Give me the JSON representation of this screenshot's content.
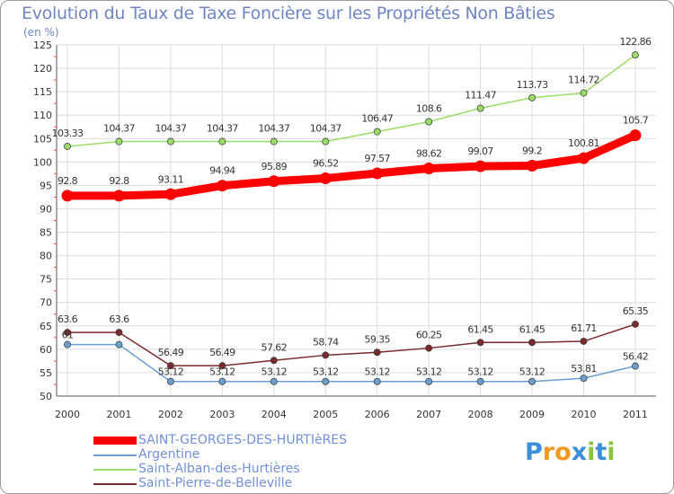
{
  "chart_data": {
    "type": "line",
    "title": "Evolution du Taux de Taxe Foncière sur les Propriétés Non Bâties",
    "ylabel": "(en %)",
    "xlabel": "",
    "x": [
      "2000",
      "2001",
      "2002",
      "2003",
      "2004",
      "2005",
      "2006",
      "2007",
      "2008",
      "2009",
      "2010",
      "2011"
    ],
    "ylim": [
      50,
      125
    ],
    "yticks": [
      "50",
      "55",
      "60",
      "65",
      "70",
      "75",
      "80",
      "85",
      "90",
      "95",
      "100",
      "105",
      "110",
      "115",
      "120",
      "125"
    ],
    "grid": true,
    "series": [
      {
        "name": "SAINT-GEORGES-DES-HURTIèRES",
        "color": "#ff0000",
        "values": [
          92.8,
          92.8,
          93.11,
          94.94,
          95.89,
          96.52,
          97.57,
          98.62,
          99.07,
          99.2,
          100.81,
          105.7
        ],
        "labels": [
          "92.8",
          "92.8",
          "93.11",
          "94.94",
          "95.89",
          "96.52",
          "97.57",
          "98.62",
          "99.07",
          "99.2",
          "100.81",
          "105.7"
        ]
      },
      {
        "name": "Argentine",
        "color": "#6a9fcf",
        "values": [
          61,
          61,
          53.12,
          53.12,
          53.12,
          53.12,
          53.12,
          53.12,
          53.12,
          53.12,
          53.81,
          56.42
        ],
        "labels": [
          "61",
          "",
          "53.12",
          "53.12",
          "53.12",
          "53.12",
          "53.12",
          "53.12",
          "53.12",
          "53.12",
          "53.81",
          "56.42"
        ]
      },
      {
        "name": "Saint-Alban-des-Hurtières",
        "color": "#99dd66",
        "values": [
          103.33,
          104.37,
          104.37,
          104.37,
          104.37,
          104.37,
          106.47,
          108.6,
          111.47,
          113.73,
          114.72,
          122.86
        ],
        "labels": [
          "103.33",
          "104.37",
          "104.37",
          "104.37",
          "104.37",
          "104.37",
          "106.47",
          "108.6",
          "111.47",
          "113.73",
          "114.72",
          "122.86"
        ]
      },
      {
        "name": "Saint-Pierre-de-Belleville",
        "color": "#7a2a2a",
        "values": [
          63.6,
          63.6,
          56.49,
          56.49,
          57.62,
          58.74,
          59.35,
          60.25,
          61.45,
          61.45,
          61.71,
          65.35
        ],
        "labels": [
          "63.6",
          "63.6",
          "56.49",
          "56.49",
          "57.62",
          "58.74",
          "59.35",
          "60.25",
          "61.45",
          "61.45",
          "61.71",
          "65.35"
        ]
      }
    ]
  },
  "logo": {
    "letters": [
      "P",
      "r",
      "o",
      "x",
      "i",
      "t",
      "i"
    ],
    "colors": [
      "#3a8fd8",
      "#f29a1f",
      "#f29a1f",
      "#3a8fd8",
      "#8ac43f",
      "#3a8fd8",
      "#8ac43f"
    ]
  }
}
